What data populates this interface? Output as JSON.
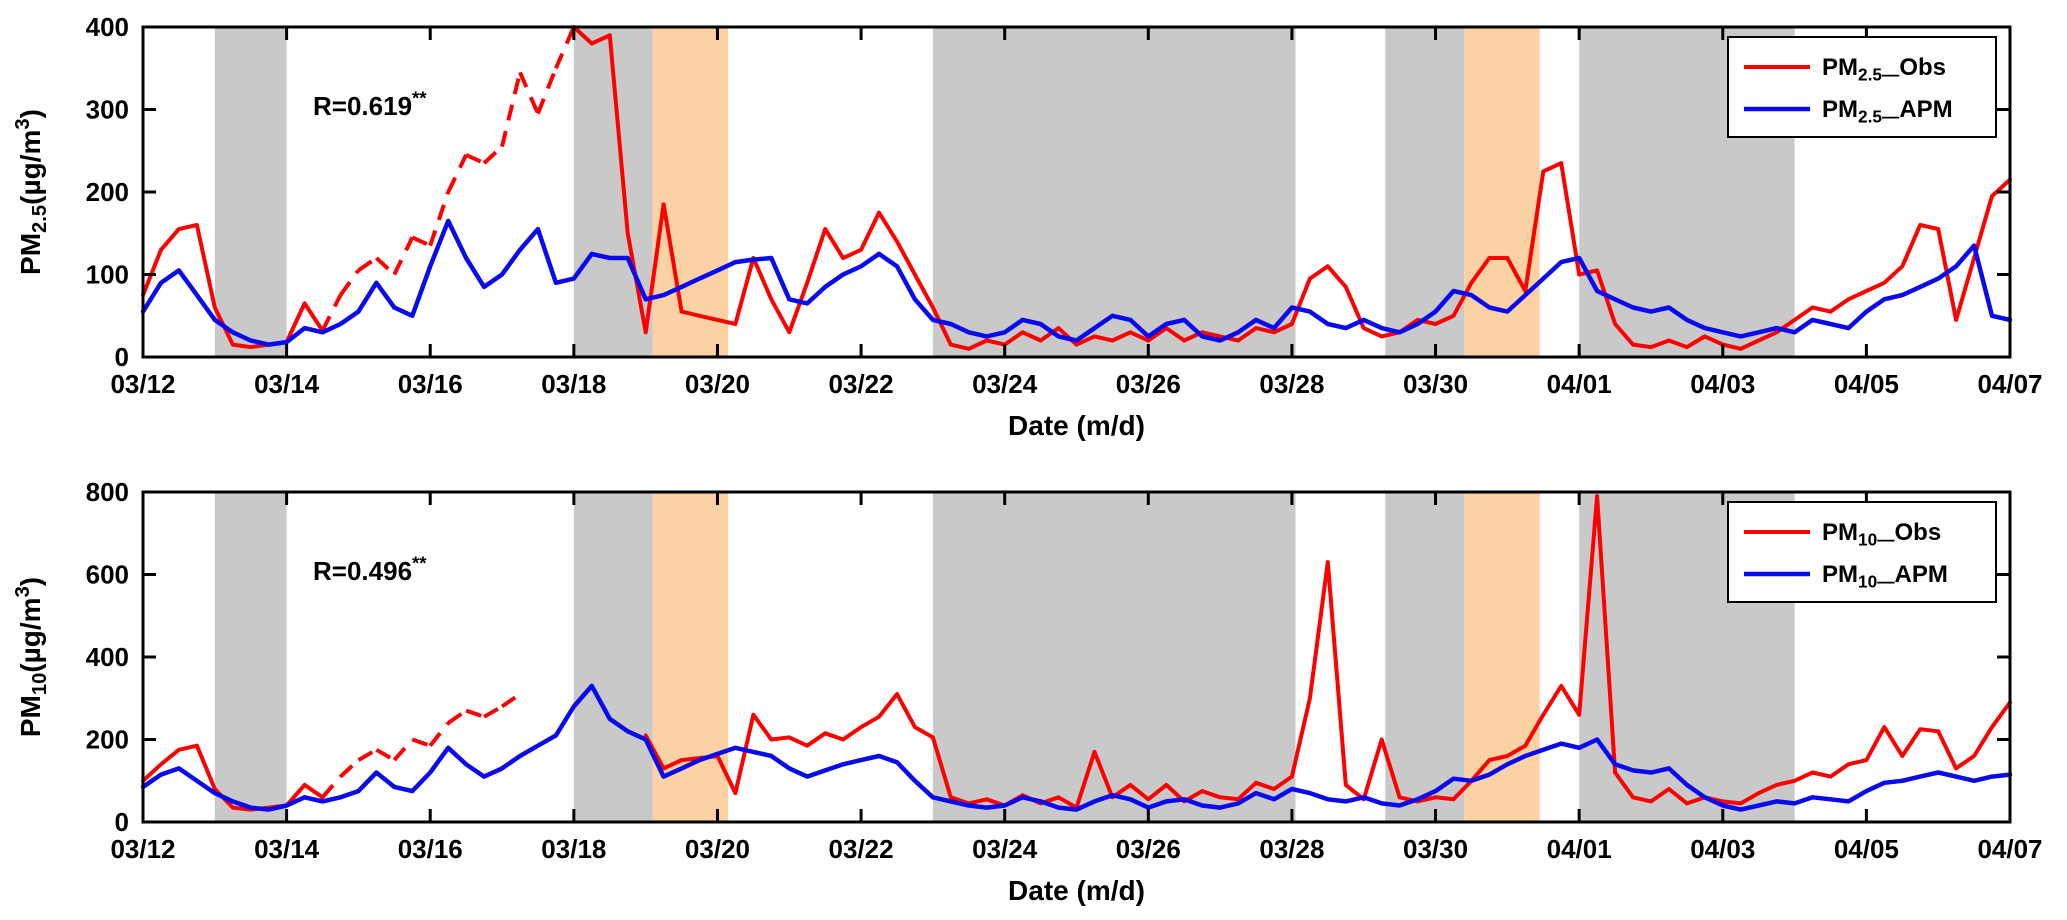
{
  "figure": {
    "xlabel": "Date (m/d)",
    "x_tick_labels": [
      "03/12",
      "03/14",
      "03/16",
      "03/18",
      "03/20",
      "03/22",
      "03/24",
      "03/26",
      "03/28",
      "03/30",
      "04/01",
      "04/03",
      "04/05",
      "04/07"
    ],
    "x_tick_days": [
      0,
      2,
      4,
      6,
      8,
      10,
      12,
      14,
      16,
      18,
      20,
      22,
      24,
      26
    ],
    "xlim_days": [
      0,
      26
    ]
  },
  "colors": {
    "obs": "#ff0000",
    "apm": "#0a0aee",
    "band_gray": "#c9c9c9",
    "band_orange": "#fad2a4",
    "axis": "#000000",
    "background": "#ffffff"
  },
  "shade_bands": [
    {
      "from_day": 1.0,
      "to_day": 2.0,
      "kind": "gray"
    },
    {
      "from_day": 6.0,
      "to_day": 7.1,
      "kind": "gray"
    },
    {
      "from_day": 7.1,
      "to_day": 8.15,
      "kind": "orange"
    },
    {
      "from_day": 11.0,
      "to_day": 16.05,
      "kind": "gray"
    },
    {
      "from_day": 17.3,
      "to_day": 18.4,
      "kind": "gray"
    },
    {
      "from_day": 18.4,
      "to_day": 19.45,
      "kind": "orange"
    },
    {
      "from_day": 20.0,
      "to_day": 23.0,
      "kind": "gray"
    }
  ],
  "chart_data": [
    {
      "type": "line",
      "name": "pm25",
      "ylabel_parts": [
        [
          "PM",
          ""
        ],
        [
          "2.5",
          "sub"
        ],
        [
          "(µg/m",
          ""
        ],
        [
          "3",
          "sup"
        ],
        [
          ")",
          ""
        ]
      ],
      "ylabel_text": "PM2.5(µg/m3)",
      "annotation_parts": [
        [
          "R=0.619",
          ""
        ],
        [
          "**",
          "sup"
        ]
      ],
      "annotation_text": "R=0.619**",
      "ylim": [
        0,
        400
      ],
      "yticks": [
        0,
        100,
        200,
        300,
        400
      ],
      "x_start_day": 0,
      "x_step_days": 0.25,
      "legend": [
        {
          "parts": [
            [
              "PM",
              ""
            ],
            [
              "2.5—",
              "sub"
            ],
            [
              "Obs",
              ""
            ]
          ],
          "text": "PM2.5_Obs",
          "series": "obs"
        },
        {
          "parts": [
            [
              "PM",
              ""
            ],
            [
              "2.5—",
              "sub"
            ],
            [
              "APM",
              ""
            ]
          ],
          "text": "PM2.5_APM",
          "series": "apm"
        }
      ],
      "series": [
        {
          "key": "obs",
          "label": "PM2.5_Obs",
          "color_ref": "obs",
          "dashed_ranges": [
            [
              2.4,
              5.9
            ]
          ],
          "values": [
            75,
            130,
            155,
            160,
            60,
            15,
            12,
            15,
            18,
            65,
            32,
            75,
            105,
            120,
            100,
            145,
            135,
            200,
            245,
            235,
            255,
            345,
            295,
            350,
            400,
            380,
            390,
            150,
            30,
            185,
            55,
            50,
            45,
            40,
            120,
            70,
            30,
            90,
            155,
            120,
            130,
            175,
            140,
            100,
            60,
            15,
            10,
            20,
            15,
            30,
            20,
            35,
            15,
            25,
            20,
            30,
            20,
            35,
            20,
            30,
            25,
            20,
            35,
            30,
            40,
            95,
            110,
            85,
            35,
            25,
            30,
            45,
            40,
            50,
            90,
            120,
            120,
            80,
            225,
            235,
            100,
            105,
            40,
            15,
            12,
            20,
            12,
            25,
            15,
            10,
            20,
            30,
            45,
            60,
            55,
            70,
            80,
            90,
            110,
            160,
            155,
            45,
            120,
            195,
            215
          ]
        },
        {
          "key": "apm",
          "label": "PM2.5_APM",
          "color_ref": "apm",
          "dashed_ranges": [],
          "values": [
            55,
            90,
            105,
            75,
            45,
            30,
            20,
            15,
            18,
            35,
            30,
            40,
            55,
            90,
            60,
            50,
            110,
            165,
            120,
            85,
            100,
            130,
            155,
            90,
            95,
            125,
            120,
            120,
            70,
            75,
            85,
            95,
            105,
            115,
            118,
            120,
            70,
            65,
            85,
            100,
            110,
            125,
            110,
            70,
            45,
            40,
            30,
            25,
            30,
            45,
            40,
            25,
            20,
            35,
            50,
            45,
            25,
            40,
            45,
            25,
            20,
            30,
            45,
            35,
            60,
            55,
            40,
            35,
            45,
            35,
            30,
            40,
            55,
            80,
            75,
            60,
            55,
            75,
            95,
            115,
            120,
            80,
            70,
            60,
            55,
            60,
            45,
            35,
            30,
            25,
            30,
            35,
            30,
            45,
            40,
            35,
            55,
            70,
            75,
            85,
            95,
            110,
            135,
            50,
            45
          ]
        }
      ]
    },
    {
      "type": "line",
      "name": "pm10",
      "ylabel_parts": [
        [
          "PM",
          ""
        ],
        [
          "10",
          "sub"
        ],
        [
          "(µg/m",
          ""
        ],
        [
          "3",
          "sup"
        ],
        [
          ")",
          ""
        ]
      ],
      "ylabel_text": "PM10(µg/m3)",
      "annotation_parts": [
        [
          "R=0.496",
          ""
        ],
        [
          "**",
          "sup"
        ]
      ],
      "annotation_text": "R=0.496**",
      "ylim": [
        0,
        800
      ],
      "yticks": [
        0,
        200,
        400,
        600,
        800
      ],
      "x_start_day": 0,
      "x_step_days": 0.25,
      "legend": [
        {
          "parts": [
            [
              "PM",
              ""
            ],
            [
              "10—",
              "sub"
            ],
            [
              "Obs",
              ""
            ]
          ],
          "text": "PM10_Obs",
          "series": "obs"
        },
        {
          "parts": [
            [
              "PM",
              ""
            ],
            [
              "10—",
              "sub"
            ],
            [
              "APM",
              ""
            ]
          ],
          "text": "PM10_APM",
          "series": "apm"
        }
      ],
      "series": [
        {
          "key": "obs",
          "label": "PM10_Obs",
          "color_ref": "obs",
          "dashed_ranges": [
            [
              2.4,
              5.3
            ]
          ],
          "values": [
            100,
            140,
            175,
            185,
            80,
            35,
            30,
            35,
            40,
            90,
            60,
            110,
            150,
            175,
            150,
            200,
            185,
            240,
            270,
            255,
            280,
            310,
            null,
            null,
            null,
            null,
            null,
            null,
            210,
            130,
            150,
            155,
            160,
            70,
            260,
            200,
            205,
            185,
            215,
            200,
            230,
            255,
            310,
            230,
            205,
            60,
            45,
            55,
            40,
            65,
            45,
            60,
            35,
            170,
            60,
            90,
            55,
            90,
            50,
            75,
            60,
            55,
            95,
            80,
            110,
            300,
            630,
            90,
            55,
            200,
            60,
            50,
            60,
            55,
            100,
            150,
            160,
            185,
            260,
            330,
            260,
            790,
            120,
            60,
            50,
            80,
            45,
            60,
            50,
            45,
            70,
            90,
            100,
            120,
            110,
            140,
            150,
            230,
            160,
            225,
            220,
            130,
            160,
            230,
            290
          ]
        },
        {
          "key": "apm",
          "label": "PM10_APM",
          "color_ref": "apm",
          "dashed_ranges": [],
          "values": [
            85,
            115,
            130,
            100,
            70,
            50,
            35,
            30,
            40,
            60,
            50,
            60,
            75,
            120,
            85,
            75,
            120,
            180,
            140,
            110,
            130,
            160,
            185,
            210,
            280,
            330,
            250,
            220,
            200,
            110,
            130,
            150,
            165,
            180,
            170,
            160,
            130,
            110,
            125,
            140,
            150,
            160,
            145,
            100,
            60,
            50,
            40,
            35,
            40,
            60,
            50,
            35,
            30,
            50,
            65,
            55,
            35,
            50,
            55,
            40,
            35,
            45,
            70,
            55,
            80,
            70,
            55,
            50,
            60,
            45,
            40,
            55,
            75,
            105,
            100,
            115,
            140,
            160,
            175,
            190,
            180,
            200,
            140,
            125,
            120,
            130,
            90,
            60,
            40,
            30,
            40,
            50,
            45,
            60,
            55,
            50,
            75,
            95,
            100,
            110,
            120,
            110,
            100,
            110,
            115
          ]
        }
      ]
    }
  ]
}
